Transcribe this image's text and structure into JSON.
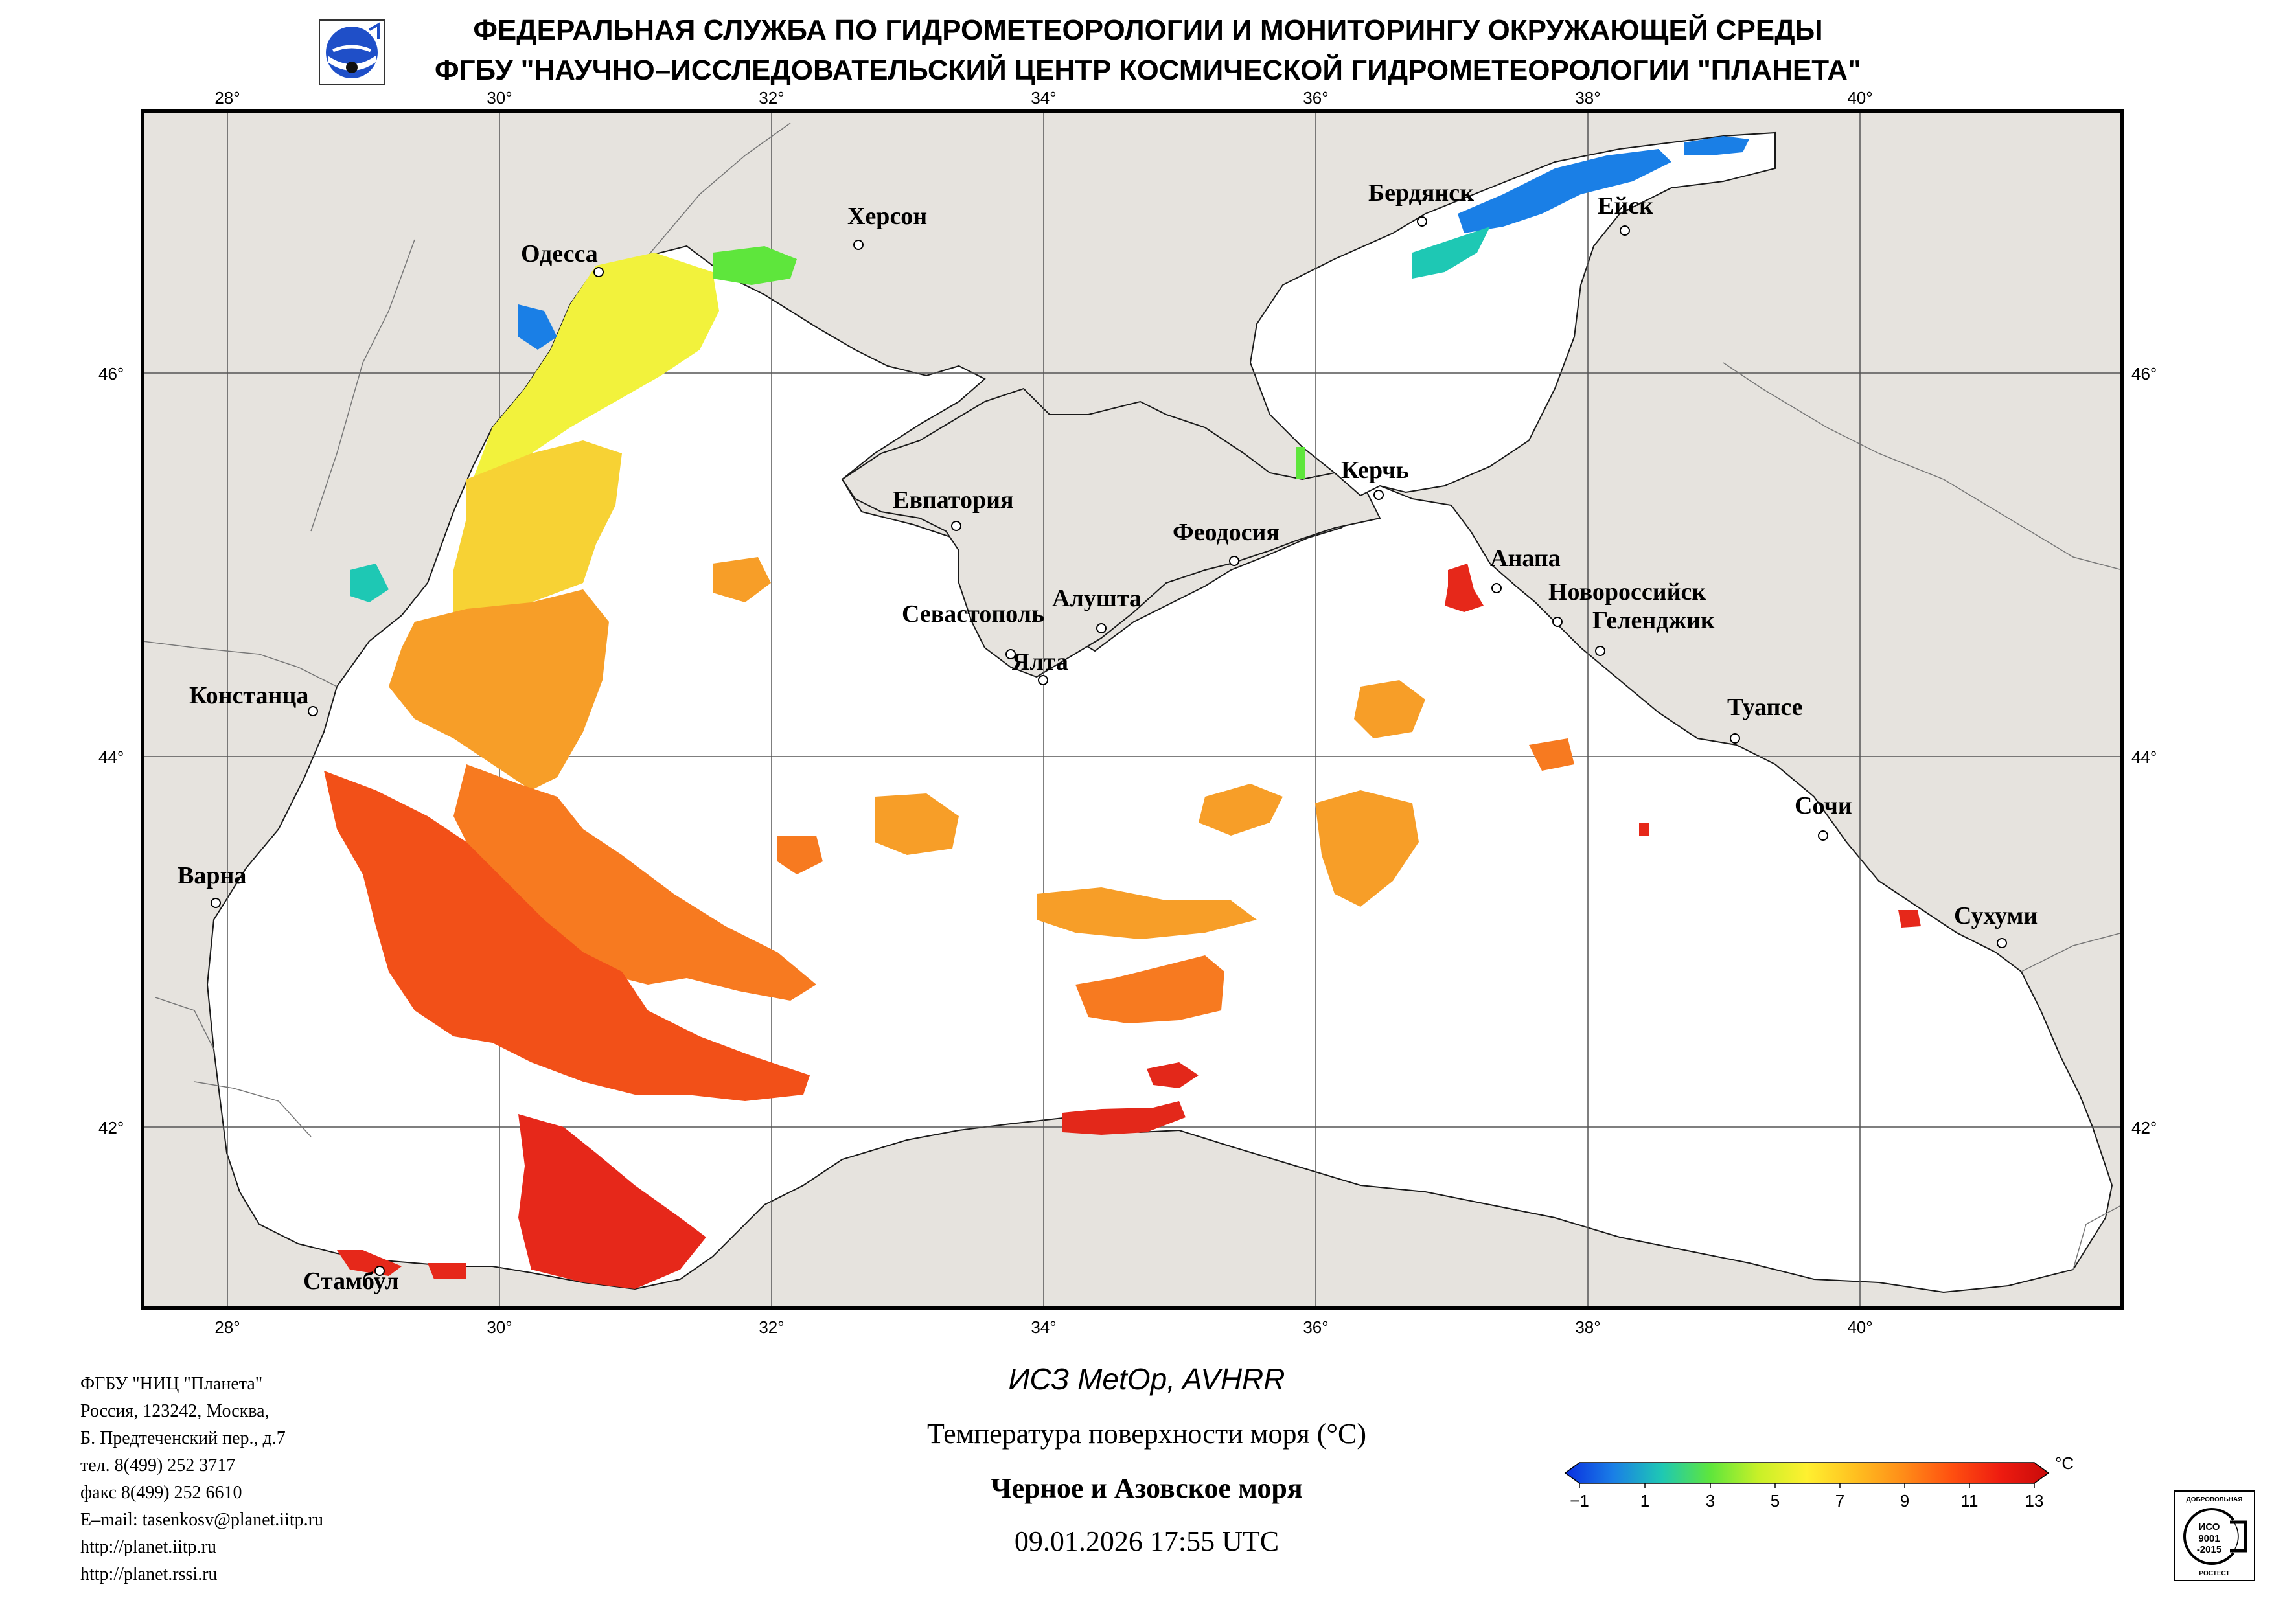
{
  "header": {
    "line1": "ФЕДЕРАЛЬНАЯ СЛУЖБА ПО ГИДРОМЕТЕОРОЛОГИИ И МОНИТОРИНГУ ОКРУЖАЮЩЕЙ СРЕДЫ",
    "line2": "ФГБУ \"НАУЧНО–ИССЛЕДОВАТЕЛЬСКИЙ ЦЕНТР КОСМИЧЕСКОЙ ГИДРОМЕТЕОРОЛОГИИ \"ПЛАНЕТА\""
  },
  "map": {
    "lon_labels": [
      "28°",
      "30°",
      "32°",
      "34°",
      "36°",
      "38°",
      "40°"
    ],
    "lat_labels": [
      "46°",
      "44°",
      "42°"
    ],
    "land_color": "#e6e3de",
    "sea_color": "#ffffff",
    "cities": [
      {
        "name": "Одесса"
      },
      {
        "name": "Херсон"
      },
      {
        "name": "Бердянск"
      },
      {
        "name": "Ейск"
      },
      {
        "name": "Евпатория"
      },
      {
        "name": "Керчь"
      },
      {
        "name": "Феодосия"
      },
      {
        "name": "Анапа"
      },
      {
        "name": "Новороссийск"
      },
      {
        "name": "Геленджик"
      },
      {
        "name": "Севастополь"
      },
      {
        "name": "Алушта"
      },
      {
        "name": "Ялта"
      },
      {
        "name": "Констанца"
      },
      {
        "name": "Туапсе"
      },
      {
        "name": "Сочи"
      },
      {
        "name": "Варна"
      },
      {
        "name": "Сухуми"
      },
      {
        "name": "Стамбул"
      }
    ]
  },
  "footer": {
    "org_lines": [
      "ФГБУ \"НИЦ \"Планета\"",
      "Россия, 123242, Москва,",
      "Б. Предтеченский пер., д.7",
      "тел. 8(499) 252 3717",
      "факс 8(499) 252 6610",
      "E–mail: tasenkosv@planet.iitp.ru",
      "http://planet.iitp.ru",
      "http://planet.rssi.ru"
    ],
    "satellite": "ИСЗ MetOp, AVHRR",
    "parameter": "Температура поверхности моря (°С)",
    "region": "Черное и Азовское моря",
    "datetime": "09.01.2026 17:55 UTC"
  },
  "colorbar": {
    "unit": "°C",
    "ticks": [
      "−1",
      "1",
      "3",
      "5",
      "7",
      "9",
      "11",
      "13"
    ],
    "colors": [
      "#0a2ee0",
      "#1a7fe6",
      "#1ec8b4",
      "#5ee63c",
      "#c8f028",
      "#fff030",
      "#ffc020",
      "#ff8c18",
      "#ff5010",
      "#ee1c10",
      "#c80a0a"
    ]
  },
  "certification": {
    "top_text": "ДОБРОВОЛЬНАЯ",
    "iso": "ИСО",
    "num": "9001",
    "year": "-2015",
    "bottom_text": "РОСТЕСТ"
  }
}
